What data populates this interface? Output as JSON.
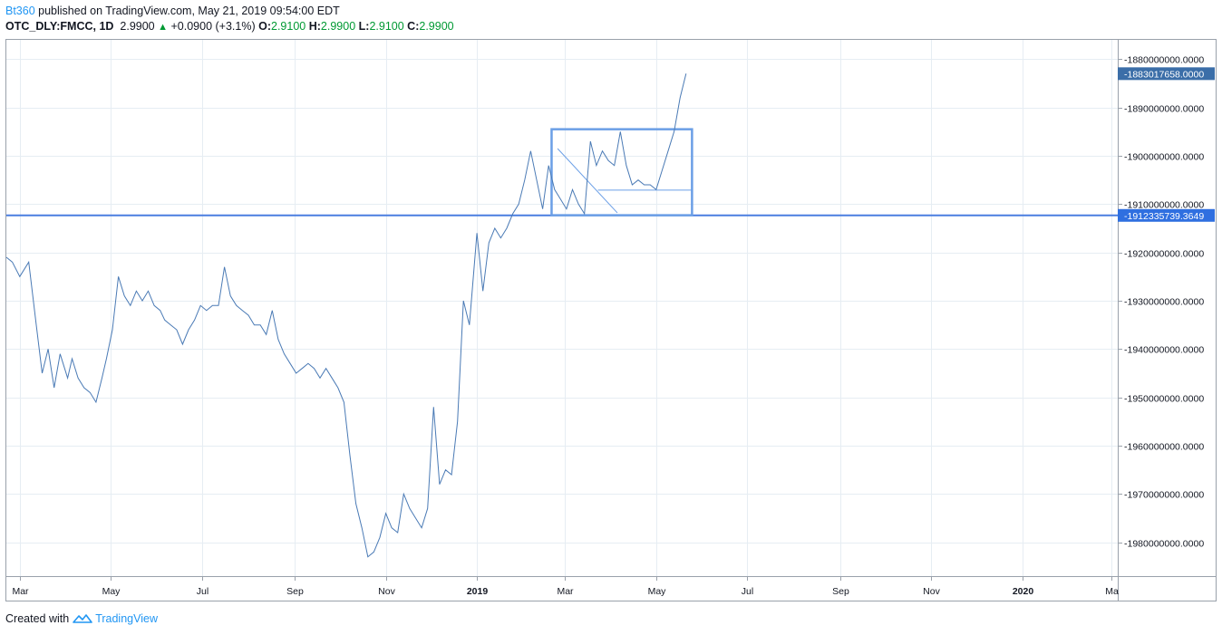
{
  "header": {
    "author": "Bt360",
    "published": " published on TradingView.com, May 21, 2019 09:54:00 EDT",
    "symbol": "OTC_DLY:FMCC, 1D",
    "last": "2.9900",
    "change": "+0.0900 (+3.1%)",
    "o_label": "O:",
    "o_value": "2.9100",
    "h_label": "H:",
    "h_value": "2.9900",
    "l_label": "L:",
    "l_value": "2.9100",
    "c_label": "C:",
    "c_value": "2.9900"
  },
  "footer": {
    "created_with": "Created with",
    "brand": "TradingView"
  },
  "colors": {
    "line": "#4a7ab5",
    "drawing": "#6b9fe6",
    "hline": "#4a7ee0",
    "grid": "#e6edf3",
    "badge_dark": "#3b6ea8",
    "badge_blue": "#2f6fe0"
  },
  "chart_data": {
    "type": "line",
    "y_tick_labels": [
      "-1880000000.0000",
      "-1890000000.0000",
      "-1900000000.0000",
      "-1910000000.0000",
      "-1920000000.0000",
      "-1930000000.0000",
      "-1940000000.0000",
      "-1950000000.0000",
      "-1960000000.0000",
      "-1970000000.0000",
      "-1980000000.0000"
    ],
    "y_ticks": [
      -1880000000,
      -1890000000,
      -1900000000,
      -1910000000,
      -1920000000,
      -1930000000,
      -1940000000,
      -1950000000,
      -1960000000,
      -1970000000,
      -1980000000
    ],
    "ylim": [
      -1987000000,
      -1876000000
    ],
    "x_tick_labels": [
      "Mar",
      "May",
      "Jul",
      "Sep",
      "Nov",
      "2019",
      "Mar",
      "May",
      "Jul",
      "Sep",
      "Nov",
      "2020",
      "Ma"
    ],
    "x_ticks": [
      "2018-03-01",
      "2018-05-01",
      "2018-07-01",
      "2018-09-01",
      "2018-11-01",
      "2019-01-01",
      "2019-03-01",
      "2019-05-01",
      "2019-07-01",
      "2019-09-01",
      "2019-11-01",
      "2020-01-01",
      "2020-03-01"
    ],
    "xlim": [
      "2018-02-20",
      "2020-03-05"
    ],
    "last_value_label": "-1883017658.0000",
    "hline_value": -1912335739.3649,
    "hline_label": "-1912335739.3649",
    "series": [
      {
        "x": [
          "2018-02-20",
          "2018-02-24",
          "2018-03-01",
          "2018-03-07",
          "2018-03-12",
          "2018-03-16",
          "2018-03-20",
          "2018-03-24",
          "2018-03-28",
          "2018-04-02",
          "2018-04-05",
          "2018-04-09",
          "2018-04-13",
          "2018-04-17",
          "2018-04-21",
          "2018-04-25",
          "2018-04-28",
          "2018-05-02",
          "2018-05-06",
          "2018-05-10",
          "2018-05-14",
          "2018-05-18",
          "2018-05-22",
          "2018-05-26",
          "2018-05-30",
          "2018-06-03",
          "2018-06-06",
          "2018-06-10",
          "2018-06-14",
          "2018-06-18",
          "2018-06-22",
          "2018-06-26",
          "2018-06-30",
          "2018-07-04",
          "2018-07-08",
          "2018-07-12",
          "2018-07-16",
          "2018-07-20",
          "2018-07-24",
          "2018-07-28",
          "2018-08-01",
          "2018-08-05",
          "2018-08-09",
          "2018-08-13",
          "2018-08-17",
          "2018-08-21",
          "2018-08-25",
          "2018-08-29",
          "2018-09-02",
          "2018-09-06",
          "2018-09-10",
          "2018-09-14",
          "2018-09-18",
          "2018-09-22",
          "2018-09-26",
          "2018-09-30",
          "2018-10-04",
          "2018-10-08",
          "2018-10-12",
          "2018-10-16",
          "2018-10-20",
          "2018-10-24",
          "2018-10-28",
          "2018-11-01",
          "2018-11-05",
          "2018-11-09",
          "2018-11-13",
          "2018-11-17",
          "2018-11-21",
          "2018-11-25",
          "2018-11-29",
          "2018-12-03",
          "2018-12-07",
          "2018-12-11",
          "2018-12-15",
          "2018-12-19",
          "2018-12-23",
          "2018-12-27",
          "2019-01-01",
          "2019-01-05",
          "2019-01-09",
          "2019-01-13",
          "2019-01-17",
          "2019-01-21",
          "2019-01-25",
          "2019-01-29",
          "2019-02-02",
          "2019-02-06",
          "2019-02-10",
          "2019-02-14",
          "2019-02-18",
          "2019-02-22",
          "2019-02-26",
          "2019-03-02",
          "2019-03-06",
          "2019-03-10",
          "2019-03-14",
          "2019-03-18",
          "2019-03-22",
          "2019-03-26",
          "2019-03-30",
          "2019-04-03",
          "2019-04-07",
          "2019-04-11",
          "2019-04-15",
          "2019-04-19",
          "2019-04-23",
          "2019-04-27",
          "2019-05-01",
          "2019-05-05",
          "2019-05-09",
          "2019-05-13",
          "2019-05-17",
          "2019-05-21"
        ],
        "values": [
          -1921000000,
          -1922000000,
          -1925000000,
          -1922000000,
          -1935000000,
          -1945000000,
          -1940000000,
          -1948000000,
          -1941000000,
          -1946000000,
          -1942000000,
          -1946000000,
          -1948000000,
          -1949000000,
          -1951000000,
          -1946000000,
          -1942000000,
          -1936000000,
          -1925000000,
          -1929000000,
          -1931000000,
          -1928000000,
          -1930000000,
          -1928000000,
          -1931000000,
          -1932000000,
          -1934000000,
          -1935000000,
          -1936000000,
          -1939000000,
          -1936000000,
          -1934000000,
          -1931000000,
          -1932000000,
          -1931000000,
          -1931000000,
          -1923000000,
          -1929000000,
          -1931000000,
          -1932000000,
          -1933000000,
          -1935000000,
          -1935000000,
          -1937000000,
          -1932000000,
          -1938000000,
          -1941000000,
          -1943000000,
          -1945000000,
          -1944000000,
          -1943000000,
          -1944000000,
          -1946000000,
          -1944000000,
          -1946000000,
          -1948000000,
          -1951000000,
          -1962000000,
          -1972000000,
          -1977000000,
          -1983000000,
          -1982000000,
          -1979000000,
          -1974000000,
          -1977000000,
          -1978000000,
          -1970000000,
          -1973000000,
          -1975000000,
          -1977000000,
          -1973000000,
          -1952000000,
          -1968000000,
          -1965000000,
          -1966000000,
          -1955000000,
          -1930000000,
          -1935000000,
          -1916000000,
          -1928000000,
          -1918000000,
          -1915000000,
          -1917000000,
          -1915000000,
          -1912000000,
          -1910000000,
          -1905000000,
          -1899000000,
          -1905000000,
          -1911000000,
          -1902000000,
          -1907000000,
          -1909000000,
          -1911000000,
          -1907000000,
          -1910000000,
          -1912000000,
          -1897000000,
          -1902000000,
          -1899000000,
          -1901000000,
          -1902000000,
          -1895000000,
          -1902000000,
          -1906000000,
          -1905000000,
          -1906000000,
          -1906000000,
          -1907000000,
          -1903000000,
          -1899000000,
          -1895000000,
          -1888000000,
          -1883000000
        ]
      }
    ],
    "drawings": {
      "rectangle": {
        "x0": "2019-02-20",
        "x1": "2019-05-25",
        "y0": -1894500000,
        "y1": -1912300000
      },
      "trendline": {
        "x0": "2019-02-24",
        "y0": -1898500000,
        "x1": "2019-04-05",
        "y1": -1911800000
      },
      "hsegment": {
        "x0": "2019-03-23",
        "x1": "2019-05-25",
        "y": -1907100000
      }
    }
  }
}
